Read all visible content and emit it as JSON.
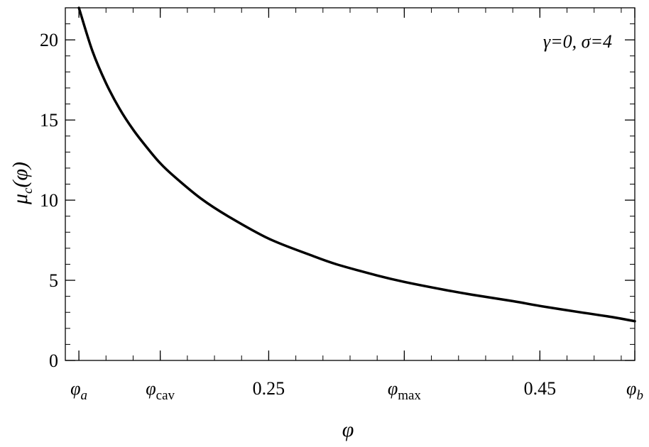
{
  "chart_data": {
    "type": "line",
    "title": "",
    "xlabel": "φ",
    "ylabel": {
      "main": "μ",
      "sub": "c",
      "args": "(φ)"
    },
    "annotation": "γ=0, σ=4",
    "xlim": [
      0.1,
      0.52
    ],
    "ylim": [
      0,
      22
    ],
    "grid": false,
    "x_ticks": [
      {
        "value": 0.11,
        "label": "φ",
        "sub": "a",
        "italic": true
      },
      {
        "value": 0.17,
        "label": "φ",
        "sub": "cav",
        "italic": false
      },
      {
        "value": 0.25,
        "label": "0.25",
        "sub": "",
        "italic": false
      },
      {
        "value": 0.35,
        "label": "φ",
        "sub": "max",
        "italic": false
      },
      {
        "value": 0.45,
        "label": "0.45",
        "sub": "",
        "italic": false
      },
      {
        "value": 0.52,
        "label": "φ",
        "sub": "b",
        "italic": true
      }
    ],
    "y_ticks": [
      {
        "value": 0,
        "label": "0"
      },
      {
        "value": 5,
        "label": "5"
      },
      {
        "value": 10,
        "label": "10"
      },
      {
        "value": 15,
        "label": "15"
      },
      {
        "value": 20,
        "label": "20"
      }
    ],
    "series": [
      {
        "color": "#000000",
        "x": [
          0.11,
          0.12,
          0.13,
          0.14,
          0.15,
          0.16,
          0.17,
          0.18,
          0.2,
          0.22,
          0.25,
          0.28,
          0.3,
          0.33,
          0.35,
          0.38,
          0.4,
          0.43,
          0.45,
          0.48,
          0.5,
          0.52
        ],
        "y": [
          22.0,
          19.3,
          17.3,
          15.7,
          14.4,
          13.3,
          12.3,
          11.5,
          10.1,
          9.0,
          7.6,
          6.6,
          6.0,
          5.3,
          4.9,
          4.4,
          4.1,
          3.7,
          3.4,
          3.0,
          2.75,
          2.45
        ]
      }
    ]
  }
}
